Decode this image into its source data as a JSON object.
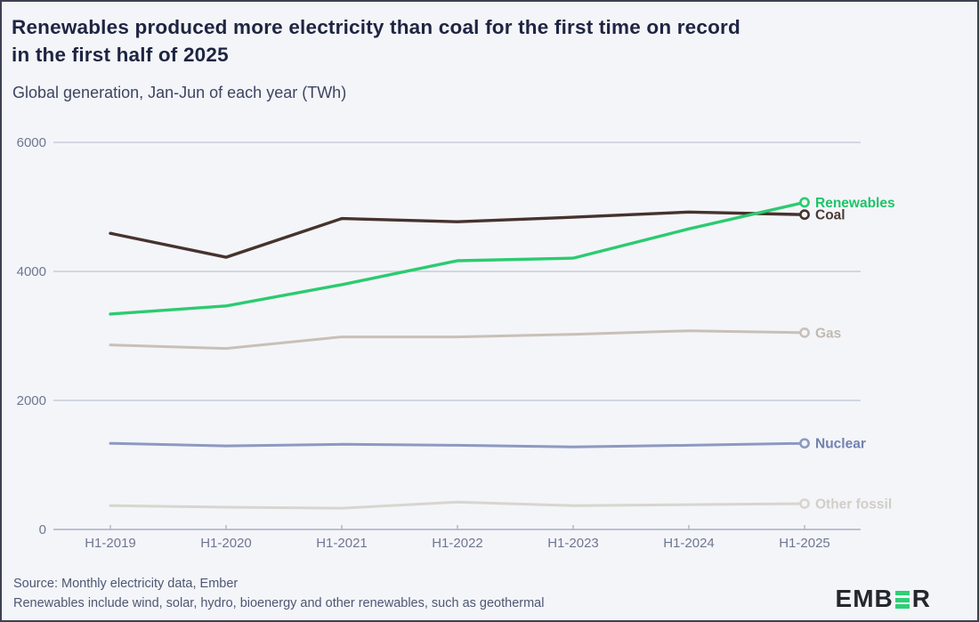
{
  "page": {
    "title_line1": "Renewables produced more electricity than coal for the first time on record",
    "title_line2": "in the first half of 2025",
    "subtitle": "Global generation, Jan-Jun of each year (TWh)",
    "footer": {
      "source": "Source: Monthly electricity data, Ember",
      "note": "Renewables include wind, solar, hydro, bioenergy and other renewables, such as geothermal"
    },
    "logo": {
      "part1": "EMB",
      "part2": "R",
      "icon": "ember-green-e-icon"
    }
  },
  "chart_data": {
    "type": "line",
    "title": "Renewables produced more electricity than coal for the first time on record in the first half of 2025",
    "subtitle": "Global generation, Jan-Jun of each year (TWh)",
    "unit": "TWh",
    "categories": [
      "H1-2019",
      "H1-2020",
      "H1-2021",
      "H1-2022",
      "H1-2023",
      "H1-2024",
      "H1-2025"
    ],
    "series": [
      {
        "name": "Renewables",
        "color": "#2bcb70",
        "label_color": "#1dc468",
        "values": [
          3340,
          3465,
          3795,
          4165,
          4205,
          4660,
          5070
        ]
      },
      {
        "name": "Coal",
        "color": "#46332e",
        "label_color": "#4b3b35",
        "values": [
          4590,
          4220,
          4820,
          4770,
          4840,
          4920,
          4880
        ]
      },
      {
        "name": "Gas",
        "color": "#c8c0b7",
        "label_color": "#c1bab0",
        "values": [
          2860,
          2805,
          2985,
          2985,
          3025,
          3080,
          3050
        ]
      },
      {
        "name": "Nuclear",
        "color": "#8c99c1",
        "label_color": "#7181b0",
        "values": [
          1335,
          1295,
          1320,
          1305,
          1280,
          1305,
          1335
        ]
      },
      {
        "name": "Other fossil",
        "color": "#d8d5cf",
        "label_color": "#d1cec8",
        "values": [
          370,
          345,
          330,
          425,
          370,
          385,
          400
        ]
      }
    ],
    "yticks": [
      0,
      2000,
      4000,
      6000
    ],
    "ylim": [
      0,
      6000
    ],
    "grid": true,
    "legend_position": "line-end-labels",
    "colors": {
      "background": "#f4f5f9",
      "gridline": "#c7cbdb",
      "baseline": "#a9b0c5",
      "tick": "#b2b9cb",
      "axis_text": "#6d7790",
      "title_text": "#1e2542",
      "subtitle_text": "#3d4560",
      "footer_text": "#4e5773",
      "border": "#3c4152",
      "logo_dark": "#26262e",
      "logo_green": "#2fcf75"
    }
  }
}
